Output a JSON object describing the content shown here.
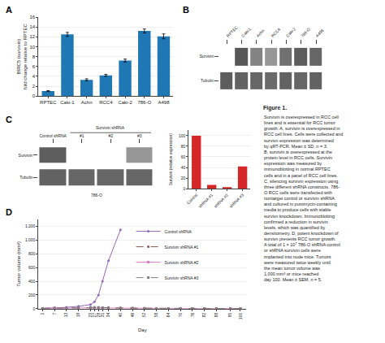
{
  "chart_data": [
    {
      "type": "bar",
      "title": "A",
      "categories": [
        "RPTEC",
        "Caki-1",
        "Achn",
        "RCC4",
        "Caki-2",
        "786-O",
        "A498"
      ],
      "values": [
        1.0,
        12.5,
        3.3,
        4.2,
        7.2,
        13.2,
        12.1
      ],
      "errors": [
        0.1,
        0.4,
        0.2,
        0.2,
        0.3,
        0.4,
        0.5
      ],
      "ylabel": "BIRC5 (survivin)\nfold change relative to RPTEC",
      "ylim": [
        0,
        16
      ],
      "yticks": [
        0,
        2,
        4,
        6,
        8,
        10,
        12,
        14,
        16
      ]
    },
    {
      "type": "heatmap",
      "title": "B",
      "x": [
        "RPTEC",
        "Caki-1",
        "Achn",
        "RCC4",
        "Caki-2",
        "786-O",
        "A498"
      ],
      "y": [
        "Survivin",
        "Tubulin"
      ],
      "cells": [
        [
          0.0,
          0.88,
          0.65,
          0.55,
          0.75,
          0.85,
          0.8
        ],
        [
          0.85,
          0.82,
          0.8,
          0.78,
          0.82,
          0.8,
          0.82
        ]
      ],
      "zlim": [
        0,
        1
      ]
    },
    {
      "type": "heatmap",
      "title": "C",
      "x": [
        "Control shRNA",
        "#1",
        "#2",
        "#3"
      ],
      "y": [
        "Survivin",
        "Tubulin"
      ],
      "cells": [
        [
          0.85,
          0.0,
          0.0,
          0.55
        ],
        [
          0.82,
          0.8,
          0.8,
          0.8
        ]
      ],
      "zlim": [
        0,
        1
      ],
      "annotations": [
        "Survivin shRNA",
        "786-O"
      ]
    },
    {
      "type": "bar",
      "categories": [
        "Control",
        "shRNA #1",
        "shRNA #2",
        "shRNA #3"
      ],
      "values": [
        100,
        7,
        2,
        42
      ],
      "ylabel": "Survivin (relative expression)",
      "ylim": [
        0,
        110
      ],
      "yticks": [
        0,
        20,
        40,
        60,
        80,
        100
      ]
    },
    {
      "type": "line",
      "title": "D",
      "x": [
        1,
        7,
        13,
        19,
        25,
        27,
        29,
        31,
        34,
        40,
        46,
        52,
        58,
        64,
        70,
        76,
        82,
        88,
        95,
        100
      ],
      "series": [
        {
          "name": "Control shRNA",
          "marker": "circle",
          "line_style": "solid",
          "values": [
            5,
            10,
            20,
            35,
            60,
            100,
            200,
            400,
            700,
            1150,
            null,
            null,
            null,
            null,
            null,
            null,
            null,
            null,
            null,
            null
          ]
        },
        {
          "name": "Survivin shRNA #1",
          "marker": "circle",
          "line_style": "dashed",
          "values": [
            5,
            8,
            12,
            15,
            17,
            18,
            17,
            15,
            12,
            9,
            7,
            5,
            4,
            3,
            3,
            3,
            3,
            3,
            3,
            3
          ]
        },
        {
          "name": "Survivin shRNA #2",
          "marker": "square",
          "line_style": "solid",
          "values": [
            5,
            8,
            11,
            13,
            15,
            16,
            15,
            13,
            10,
            7,
            5,
            4,
            3,
            3,
            3,
            3,
            3,
            3,
            3,
            3
          ]
        },
        {
          "name": "Survivin shRNA #3",
          "marker": "square",
          "line_style": "dashed",
          "values": [
            5,
            9,
            13,
            16,
            18,
            19,
            18,
            16,
            13,
            10,
            8,
            6,
            5,
            4,
            3,
            3,
            3,
            3,
            3,
            3
          ]
        }
      ],
      "xlabel": "Day",
      "ylabel": "Tumor volume (mm³)",
      "xlim": [
        -1,
        103
      ],
      "xticks": [
        1,
        7,
        13,
        19,
        25,
        27,
        29,
        31,
        34,
        40,
        46,
        52,
        58,
        64,
        70,
        76,
        82,
        88,
        95,
        100
      ],
      "ylim": [
        0,
        1300
      ],
      "yticks": [
        0,
        200,
        400,
        600,
        800,
        {
          "value": 1000,
          "label": "1,000"
        },
        {
          "value": 1200,
          "label": "1,200"
        }
      ],
      "legend": "top"
    },
    {
      "type": "text",
      "title": "Figure 1.",
      "annotations": [
        "Survivin is overexpressed in RCC cell\nlines and is essential for RCC tumor\ngrowth. A, survivin is overexpressed in\nRCC cell lines. Cells were collected and\nsurvivn expression was determined\nby qRT-PCR. Mean ± SD, n = 3.\nB, survivin is overexpressed at the\nprotein level in RCC cells. Survivin\nexpression was measured by\nimmunoblotting in normal RPTEC\ncells and in a panel of RCC cell lines.\nC, silencing survivin expression using\nthree different shRNA constructs. 786-\nO RCC cells were transfected with\nnontarget control or survivin shRNA\nand cultured in puromycin-containing\nmedia to produce cells with stable\nsurvivn knockdown. Immunoblotting\nconfirmed a reduction in survivin\nlevels, which was quantified by\ndensitometry. D, potent knockdown of\nsurvivn prevents RCC tumor growth.\nA total of 1 × 10⁷ 786-O shRNA control\nor shRNA survivin cells were\nimplanted into nude mice. Tumors\nwere measured twice weekly until\nthe mean tumor volume was\n1,000 mm³ or mice reached\nday 100. Mean ± SEM, n = 5."
      ]
    }
  ]
}
